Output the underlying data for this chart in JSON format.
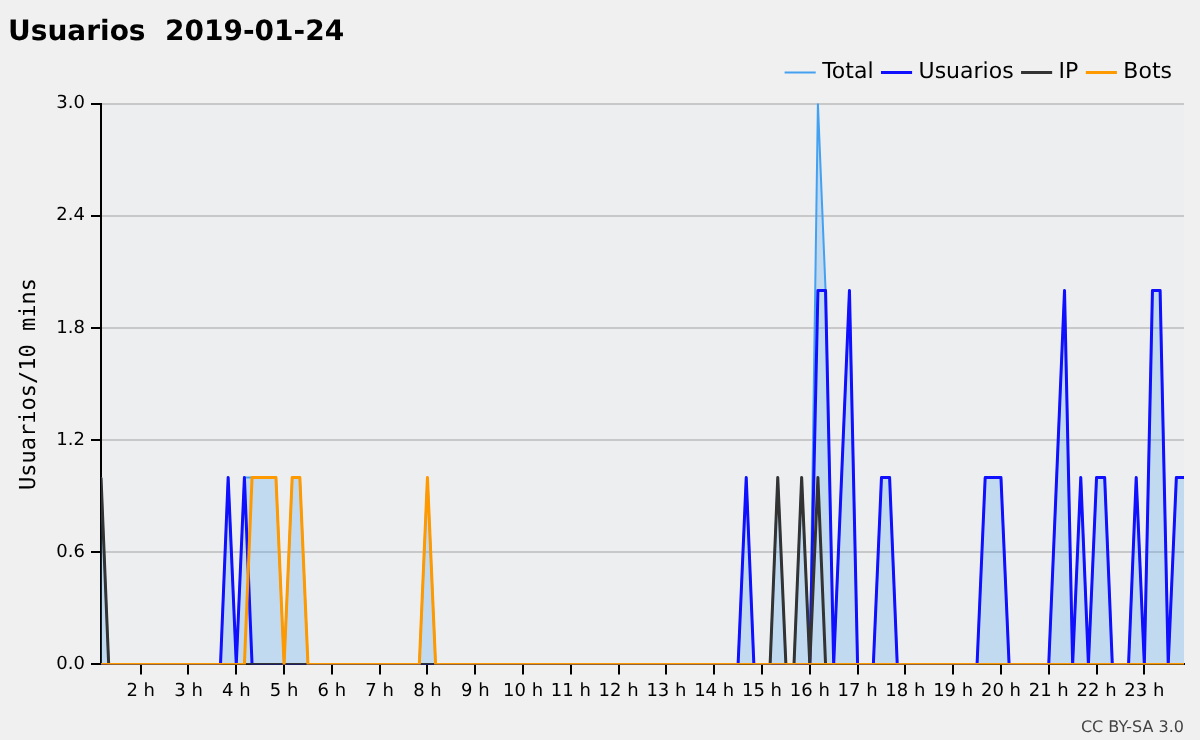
{
  "chart_data": {
    "type": "line",
    "title": "Usuarios  2019-01-24",
    "ylabel": "Usuarios/10 mins",
    "annotations": [
      "CC BY-SA 3.0"
    ],
    "xlim": [
      1.17,
      23.83
    ],
    "ylim": [
      0,
      3
    ],
    "xticks": [
      {
        "value": 2,
        "label": "2 h"
      },
      {
        "value": 3,
        "label": "3 h"
      },
      {
        "value": 4,
        "label": "4 h"
      },
      {
        "value": 5,
        "label": "5 h"
      },
      {
        "value": 6,
        "label": "6 h"
      },
      {
        "value": 7,
        "label": "7 h"
      },
      {
        "value": 8,
        "label": "8 h"
      },
      {
        "value": 9,
        "label": "9 h"
      },
      {
        "value": 10,
        "label": "10 h"
      },
      {
        "value": 11,
        "label": "11 h"
      },
      {
        "value": 12,
        "label": "12 h"
      },
      {
        "value": 13,
        "label": "13 h"
      },
      {
        "value": 14,
        "label": "14 h"
      },
      {
        "value": 15,
        "label": "15 h"
      },
      {
        "value": 16,
        "label": "16 h"
      },
      {
        "value": 17,
        "label": "17 h"
      },
      {
        "value": 18,
        "label": "18 h"
      },
      {
        "value": 19,
        "label": "19 h"
      },
      {
        "value": 20,
        "label": "20 h"
      },
      {
        "value": 21,
        "label": "21 h"
      },
      {
        "value": 22,
        "label": "22 h"
      },
      {
        "value": 23,
        "label": "23 h"
      }
    ],
    "yticks": [
      {
        "value": 0,
        "label": "0.0"
      },
      {
        "value": 0.6,
        "label": "0.6"
      },
      {
        "value": 1.2,
        "label": "1.2"
      },
      {
        "value": 1.8,
        "label": "1.8"
      },
      {
        "value": 2.4,
        "label": "2.4"
      },
      {
        "value": 3,
        "label": "3.0"
      }
    ],
    "grid": "y",
    "legend": "top right",
    "marker": "none",
    "series": [
      {
        "name": "Total",
        "type": "area",
        "color": "#44a0f0",
        "x": [
          1.17,
          1.33,
          3.67,
          3.83,
          4,
          4.17,
          4.33,
          4.5,
          4.67,
          4.83,
          5,
          5.17,
          5.33,
          5.5,
          7.83,
          8,
          8.17,
          14.5,
          14.67,
          14.83,
          15.17,
          15.33,
          15.5,
          15.67,
          15.83,
          16,
          16.17,
          16.33,
          16.5,
          16.83,
          17,
          17.33,
          17.5,
          17.67,
          17.83,
          19.5,
          19.67,
          19.83,
          20,
          20.17,
          21,
          21.33,
          21.5,
          21.67,
          21.83,
          22,
          22.17,
          22.33,
          22.67,
          22.83,
          23,
          23.17,
          23.33,
          23.5,
          23.67,
          23.83
        ],
        "values": [
          1,
          0,
          0,
          1,
          0,
          1,
          1,
          1,
          1,
          1,
          0,
          1,
          1,
          0,
          0,
          1,
          0,
          0,
          1,
          0,
          0,
          1,
          0,
          0,
          1,
          0,
          3,
          2,
          0,
          2,
          0,
          0,
          1,
          1,
          0,
          0,
          1,
          1,
          1,
          0,
          0,
          2,
          0,
          1,
          0,
          1,
          1,
          0,
          0,
          1,
          0,
          2,
          2,
          0,
          1,
          1
        ]
      },
      {
        "name": "Usuarios",
        "color": "#1010ff",
        "x": [
          1.17,
          3.67,
          3.83,
          4,
          4.17,
          4.33,
          14.5,
          14.67,
          14.83,
          16,
          16.17,
          16.33,
          16.5,
          16.83,
          17,
          17.33,
          17.5,
          17.67,
          17.83,
          19.5,
          19.67,
          19.83,
          20,
          20.17,
          21,
          21.33,
          21.5,
          21.67,
          21.83,
          22,
          22.17,
          22.33,
          22.67,
          22.83,
          23,
          23.17,
          23.33,
          23.5,
          23.67,
          23.83
        ],
        "values": [
          0,
          0,
          1,
          0,
          1,
          0,
          0,
          1,
          0,
          0,
          2,
          2,
          0,
          2,
          0,
          0,
          1,
          1,
          0,
          0,
          1,
          1,
          1,
          0,
          0,
          2,
          0,
          1,
          0,
          1,
          1,
          0,
          0,
          1,
          0,
          2,
          2,
          0,
          1,
          1
        ]
      },
      {
        "name": "IP",
        "color": "#333333",
        "x": [
          1.17,
          1.33,
          15.17,
          15.33,
          15.5,
          15.67,
          15.83,
          16,
          16.17,
          16.33,
          23.83
        ],
        "values": [
          1,
          0,
          0,
          1,
          0,
          0,
          1,
          0,
          1,
          0,
          0
        ]
      },
      {
        "name": "Bots",
        "color": "#ff9900",
        "x": [
          1.17,
          4.17,
          4.33,
          4.5,
          4.67,
          4.83,
          5,
          5.17,
          5.33,
          5.5,
          7.83,
          8,
          8.17,
          23.83
        ],
        "values": [
          0,
          0,
          1,
          1,
          1,
          1,
          0,
          1,
          1,
          0,
          0,
          1,
          0,
          0
        ]
      }
    ]
  }
}
